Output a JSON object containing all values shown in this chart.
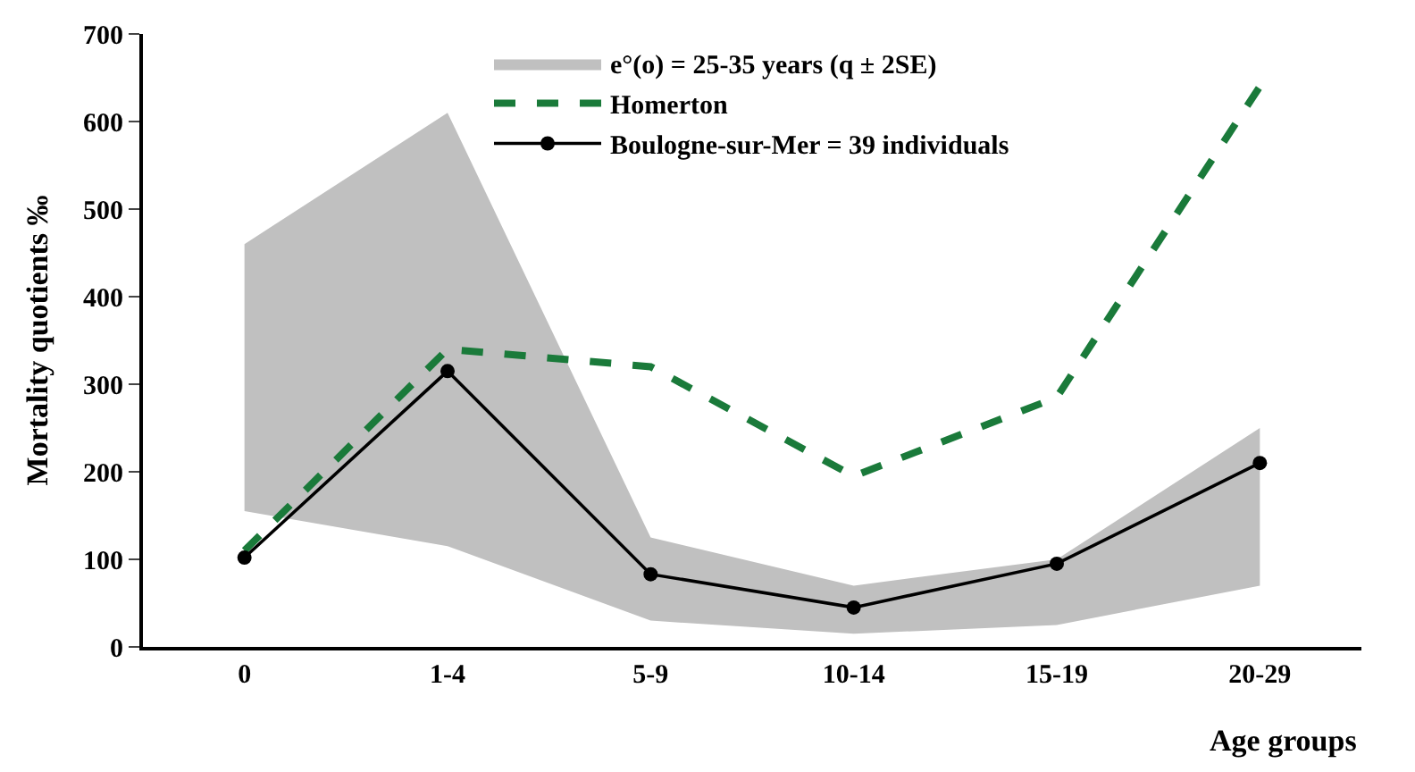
{
  "chart_data": {
    "type": "line",
    "xlabel": "Age groups",
    "ylabel": "Mortality quotients ‰",
    "categories": [
      "0",
      "1-4",
      "5-9",
      "10-14",
      "15-19",
      "20-29"
    ],
    "series": [
      {
        "name": "e°(o) = 25-35 years (q ± 2SE)",
        "type": "area",
        "color": "#c0c0c0",
        "values": [
          null,
          null,
          null,
          null,
          null,
          null
        ],
        "lower": [
          155,
          115,
          30,
          15,
          25,
          70
        ],
        "upper": [
          460,
          610,
          125,
          70,
          100,
          250
        ]
      },
      {
        "name": "Homerton",
        "color": "#1a7a3a",
        "line_style": "dashed",
        "marker": "none",
        "values": [
          110,
          340,
          320,
          195,
          285,
          640
        ]
      },
      {
        "name": "Boulogne-sur-Mer = 39 individuals",
        "color": "#000000",
        "line_style": "solid",
        "marker": "circle",
        "values": [
          102,
          315,
          83,
          45,
          95,
          210
        ]
      }
    ],
    "ylim": [
      0,
      700
    ],
    "yticks": [
      0,
      100,
      200,
      300,
      400,
      500,
      600,
      700
    ],
    "legend": "top"
  }
}
